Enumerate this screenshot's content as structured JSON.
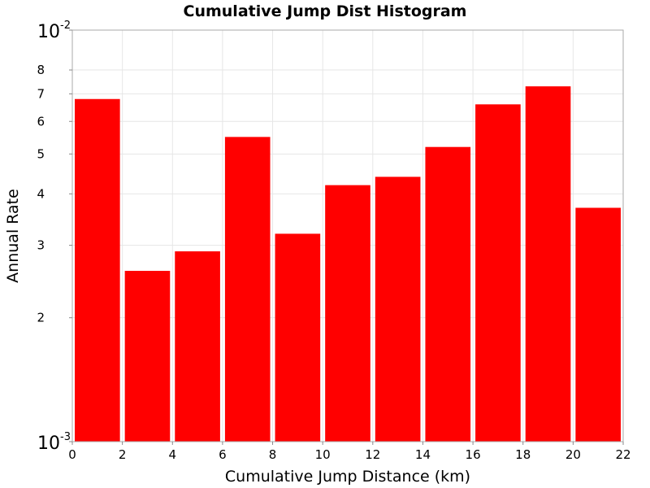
{
  "chart_data": {
    "type": "bar",
    "title": "Cumulative Jump Dist Histogram",
    "xlabel": "Cumulative Jump Distance (km)",
    "ylabel": "Annual Rate",
    "xlim": [
      0,
      22
    ],
    "ylim": [
      0.001,
      0.01
    ],
    "y_scale": "log",
    "x_ticks": [
      "0",
      "2",
      "4",
      "6",
      "8",
      "10",
      "12",
      "14",
      "16",
      "18",
      "20",
      "22"
    ],
    "y_ticks": [
      {
        "value": 0.001,
        "base": "10",
        "exp": "-3"
      },
      {
        "value": 0.002,
        "label": "2"
      },
      {
        "value": 0.003,
        "label": "3"
      },
      {
        "value": 0.004,
        "label": "4"
      },
      {
        "value": 0.005,
        "label": "5"
      },
      {
        "value": 0.006,
        "label": "6"
      },
      {
        "value": 0.007,
        "label": "7"
      },
      {
        "value": 0.008,
        "label": "8"
      },
      {
        "value": 0.01,
        "base": "10",
        "exp": "-2"
      }
    ],
    "bar_color": "#ff0000",
    "grid": true,
    "bars": [
      {
        "x0": 0,
        "x1": 2,
        "value": 0.0068
      },
      {
        "x0": 2,
        "x1": 4,
        "value": 0.0026
      },
      {
        "x0": 4,
        "x1": 6,
        "value": 0.0029
      },
      {
        "x0": 6,
        "x1": 8,
        "value": 0.0055
      },
      {
        "x0": 8,
        "x1": 10,
        "value": 0.0032
      },
      {
        "x0": 10,
        "x1": 12,
        "value": 0.0042
      },
      {
        "x0": 12,
        "x1": 14,
        "value": 0.0044
      },
      {
        "x0": 14,
        "x1": 16,
        "value": 0.0052
      },
      {
        "x0": 16,
        "x1": 18,
        "value": 0.0066
      },
      {
        "x0": 18,
        "x1": 20,
        "value": 0.0073
      },
      {
        "x0": 20,
        "x1": 22,
        "value": 0.0037
      }
    ]
  }
}
